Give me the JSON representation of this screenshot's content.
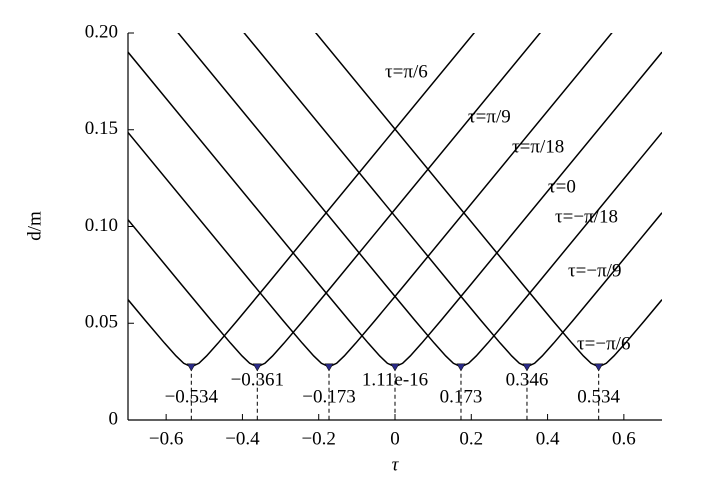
{
  "chart_data": {
    "type": "line",
    "x_label": "τ",
    "y_label": "d/m",
    "xlim": [
      -0.7,
      0.7
    ],
    "ylim": [
      0,
      0.2
    ],
    "xticks": [
      {
        "value": -0.6,
        "label": "−0.6"
      },
      {
        "value": -0.4,
        "label": "−0.4"
      },
      {
        "value": -0.2,
        "label": "−0.2"
      },
      0,
      0.2,
      0.4,
      0.6
    ],
    "yticks": [
      0,
      {
        "value": 0.05,
        "label": "0.05"
      },
      {
        "value": 0.1,
        "label": "0.10"
      },
      {
        "value": 0.15,
        "label": "0.15"
      },
      {
        "value": 0.2,
        "label": "0.20"
      }
    ],
    "series": [
      {
        "name": "τ=π/6",
        "color": "#000000",
        "x": [
          -0.7,
          -0.654,
          -0.604,
          -0.574,
          -0.554,
          -0.534,
          -0.514,
          -0.494,
          -0.464,
          -0.414,
          -0.334,
          0.249
        ],
        "values": [
          0.0622,
          0.0513,
          0.0397,
          0.0331,
          0.0293,
          0.0275,
          0.0293,
          0.0331,
          0.0397,
          0.0513,
          0.0703,
          0.21
        ]
      },
      {
        "name": "τ=π/9",
        "color": "#000000",
        "x": [
          -0.7,
          -0.561,
          -0.481,
          -0.431,
          -0.401,
          -0.381,
          -0.361,
          -0.341,
          -0.321,
          -0.291,
          -0.241,
          -0.161,
          0.422
        ],
        "values": [
          0.1035,
          0.0703,
          0.0513,
          0.0397,
          0.0331,
          0.0293,
          0.0275,
          0.0293,
          0.0331,
          0.0397,
          0.0513,
          0.0703,
          0.21
        ]
      },
      {
        "name": "τ=π/18",
        "color": "#000000",
        "x": [
          -0.7,
          -0.373,
          -0.293,
          -0.243,
          -0.213,
          -0.193,
          -0.173,
          -0.153,
          -0.133,
          -0.103,
          -0.053,
          0.027,
          0.61
        ],
        "values": [
          0.1486,
          0.0703,
          0.0513,
          0.0397,
          0.0331,
          0.0293,
          0.0275,
          0.0293,
          0.0331,
          0.0397,
          0.0513,
          0.0703,
          0.21
        ]
      },
      {
        "name": "τ=0",
        "color": "#000000",
        "x": [
          -0.7,
          -0.2,
          -0.12,
          -0.07,
          -0.04,
          -0.02,
          0,
          0.02,
          0.04,
          0.07,
          0.12,
          0.2,
          0.7
        ],
        "values": [
          0.1901,
          0.0703,
          0.0513,
          0.0397,
          0.0331,
          0.0293,
          0.0275,
          0.0293,
          0.0331,
          0.0397,
          0.0513,
          0.0703,
          0.1901
        ]
      },
      {
        "name": "τ=−π/18",
        "color": "#000000",
        "x": [
          -0.61,
          -0.027,
          0.053,
          0.103,
          0.133,
          0.153,
          0.173,
          0.193,
          0.213,
          0.243,
          0.293,
          0.373,
          0.7
        ],
        "values": [
          0.21,
          0.0703,
          0.0513,
          0.0397,
          0.0331,
          0.0293,
          0.0275,
          0.0293,
          0.0331,
          0.0397,
          0.0513,
          0.0703,
          0.1486
        ]
      },
      {
        "name": "τ=−π/9",
        "color": "#000000",
        "x": [
          -0.437,
          0.146,
          0.226,
          0.276,
          0.306,
          0.326,
          0.346,
          0.366,
          0.386,
          0.416,
          0.466,
          0.546,
          0.7
        ],
        "values": [
          0.21,
          0.0703,
          0.0513,
          0.0397,
          0.0331,
          0.0293,
          0.0275,
          0.0293,
          0.0331,
          0.0397,
          0.0513,
          0.0703,
          0.1071
        ]
      },
      {
        "name": "τ=−π/6",
        "color": "#000000",
        "x": [
          -0.249,
          0.334,
          0.414,
          0.464,
          0.494,
          0.514,
          0.534,
          0.554,
          0.574,
          0.604,
          0.654,
          0.7
        ],
        "values": [
          0.21,
          0.0703,
          0.0513,
          0.0397,
          0.0331,
          0.0293,
          0.0275,
          0.0293,
          0.0331,
          0.0397,
          0.0513,
          0.0622
        ]
      }
    ],
    "minima": {
      "color": "#2a2a8a",
      "x": [
        -0.534,
        -0.361,
        -0.173,
        1.11e-16,
        0.173,
        0.346,
        0.534
      ],
      "values": [
        0.0275,
        0.0275,
        0.0275,
        0.0275,
        0.0275,
        0.0275,
        0.0275
      ],
      "value_labels": [
        "−0.534",
        "−0.361",
        "−0.173",
        "1.11e-16",
        "0.173",
        "0.346",
        "0.534"
      ]
    }
  }
}
